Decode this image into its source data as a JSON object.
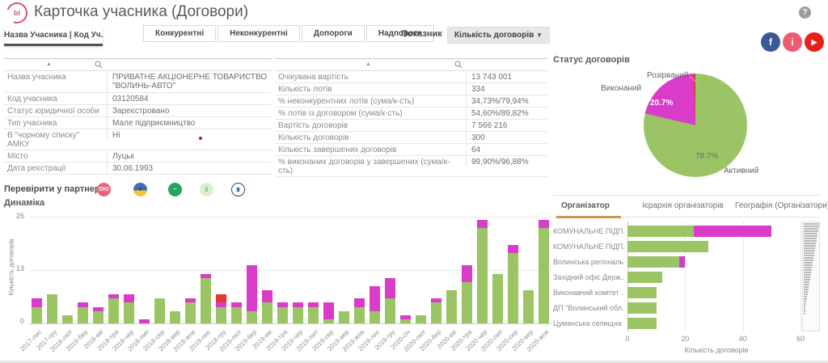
{
  "header": {
    "logo_text": "bi",
    "title": "Карточка учасника (Договори)",
    "help_glyph": "?"
  },
  "tabs": {
    "active": "Назва Учасника | Код Уч...",
    "items": [
      "Конкурентні",
      "Неконкурентні",
      "Допороги",
      "Надпороги"
    ]
  },
  "indicator": {
    "label": "Показник",
    "value": "Кількість договорів",
    "caret": "▼"
  },
  "social_icons": [
    {
      "name": "facebook-icon",
      "color": "#3b5998",
      "glyph": "f"
    },
    {
      "name": "info-icon",
      "color": "#ef5a6e",
      "glyph": "i"
    },
    {
      "name": "youtube-icon",
      "color": "#e62117",
      "glyph": "▶"
    }
  ],
  "participant_table": {
    "rows": [
      {
        "label": "Назва учасника",
        "value": "ПРИВАТНЕ АКЦІОНЕРНЕ ТОВАРИСТВО \"ВОЛИНЬ-АВТО\""
      },
      {
        "label": "Код учасника",
        "value": "03120584"
      },
      {
        "label": "Статус юридичної особи",
        "value": "Зареєстровано"
      },
      {
        "label": "Тип учасника",
        "value": "Мале підприємництво"
      },
      {
        "label": "В \"чорному списку\" АМКУ",
        "value": "Ні"
      },
      {
        "label": "Місто",
        "value": "Луцьк"
      },
      {
        "label": "Дата реєстрації",
        "value": "30.06.1993"
      }
    ]
  },
  "metrics_table": {
    "rows": [
      {
        "label": "Очікувана вартість",
        "value": "13 743 001"
      },
      {
        "label": "Кількість лотів",
        "value": "334"
      },
      {
        "label": "% неконкурентних лотів (сума/к-сть)",
        "value": "34,73%/79,94%"
      },
      {
        "label": "% лотів із договором (сума/к-сть)",
        "value": "54,60%/89,82%"
      },
      {
        "label": "Вартість договорів",
        "value": "7 566 216"
      },
      {
        "label": "Кількість договорів",
        "value": "300"
      },
      {
        "label": "Кількість завершених договорів",
        "value": "64"
      },
      {
        "label": "% виконаних договорів у завершених (сума/к-сть)",
        "value": "99,90%/96,88%"
      }
    ]
  },
  "partners": {
    "label": "Перевірити у партнерів:",
    "icons": [
      {
        "name": "partner-icon-1",
        "bg": "#ee6075",
        "fg": "#ffffff",
        "glyph": "ОЮ",
        "border": "none"
      },
      {
        "name": "partner-icon-2",
        "bg": "linear-gradient(#3f6db5 55%, #f4c531 45%)",
        "fg": "#1d3557",
        "glyph": "♦",
        "border": "none"
      },
      {
        "name": "partner-icon-3",
        "bg": "#27a361",
        "fg": "#ffffff",
        "glyph": "–",
        "border": "none"
      },
      {
        "name": "partner-icon-4",
        "bg": "#d9f0cf",
        "fg": "#57b847",
        "glyph": "⠿",
        "border": "none"
      },
      {
        "name": "partner-icon-5",
        "bg": "#ffffff",
        "fg": "#1f4e79",
        "glyph": "Ⅲ",
        "border": "1.5px solid #1f4e79"
      }
    ]
  },
  "organizer_panel": {
    "tabs": [
      {
        "label": "Організатор",
        "active": true
      },
      {
        "label": "Ієрархія організаторів",
        "active": false
      },
      {
        "label": "Географія (Організатори)",
        "active": false
      }
    ]
  },
  "chart_data": [
    {
      "type": "pie",
      "title": "Статус договорів",
      "labels": [
        "Активний",
        "Виконаний",
        "Розірваний"
      ],
      "values": [
        78.7,
        20.7,
        0.6
      ],
      "colors": [
        "#9bc565",
        "#d93cc8",
        "#e0392e"
      ],
      "value_labels": [
        "78.7%",
        "20.7%",
        ""
      ]
    },
    {
      "type": "bar",
      "stacked": true,
      "title": "Динаміка",
      "ylabel": "Кількість договорів",
      "ylim": [
        0,
        26
      ],
      "yticks": [
        0,
        13,
        26
      ],
      "grid": true,
      "categories": [
        "2017-лис",
        "2017-гру",
        "2018-лют",
        "2018-бер",
        "2018-кві",
        "2018-тра",
        "2018-чер",
        "2018-лип",
        "2018-сер",
        "2018-вер",
        "2018-жов",
        "2018-лис",
        "2018-гру",
        "2019-лют",
        "2019-бер",
        "2019-кві",
        "2019-тра",
        "2019-чер",
        "2019-лип",
        "2019-сер",
        "2019-вер",
        "2019-жов",
        "2019-лис",
        "2019-гру",
        "2020-січ",
        "2020-лют",
        "2020-бер",
        "2020-кві",
        "2020-тра",
        "2020-чер",
        "2020-лип",
        "2020-сер",
        "2020-вер",
        "2020-жов"
      ],
      "series": [
        {
          "name": "Активний",
          "color": "#9bc565",
          "values": [
            4,
            7,
            2,
            4,
            3,
            6,
            5,
            0,
            6,
            3,
            5,
            11,
            4,
            4,
            3,
            5,
            4,
            4,
            4,
            1,
            3,
            4,
            3,
            6,
            1,
            2,
            5,
            8,
            10,
            23,
            12,
            17,
            8,
            23
          ]
        },
        {
          "name": "Виконаний",
          "color": "#d93cc8",
          "values": [
            2,
            0,
            0,
            1,
            1,
            1,
            2,
            1,
            0,
            0,
            1,
            1,
            1,
            1,
            11,
            3,
            1,
            1,
            1,
            4,
            0,
            2,
            6,
            5,
            1,
            0,
            1,
            0,
            4,
            2,
            0,
            2,
            0,
            2
          ]
        },
        {
          "name": "Розірваний",
          "color": "#e0392e",
          "values": [
            0,
            0,
            0,
            0,
            0,
            0,
            0,
            0,
            0,
            0,
            0,
            0,
            2,
            0,
            0,
            0,
            0,
            0,
            0,
            0,
            0,
            0,
            0,
            0,
            0,
            0,
            0,
            0,
            0,
            0,
            0,
            0,
            0,
            0
          ]
        }
      ]
    },
    {
      "type": "bar",
      "orientation": "horizontal",
      "stacked": true,
      "xlabel": "Кількість договорів",
      "xlim": [
        0,
        65
      ],
      "xticks": [
        0,
        20,
        40,
        60
      ],
      "categories": [
        "КОМУНАЛЬНЕ ПІДП...",
        "КОМУНАЛЬНЕ ПІДП...",
        "Волинська регіональ...",
        "Західний офіс Держ...",
        "Виконавчий комітет ...",
        "ДП \"Волинський обл...",
        "Цуманська селищна ..."
      ],
      "series": [
        {
          "name": "Активний",
          "color": "#9bc565",
          "values": [
            23,
            28,
            18,
            12,
            10,
            10,
            10
          ]
        },
        {
          "name": "Виконаний",
          "color": "#d93cc8",
          "values": [
            27,
            0,
            2,
            0,
            0,
            0,
            0
          ]
        }
      ]
    }
  ]
}
